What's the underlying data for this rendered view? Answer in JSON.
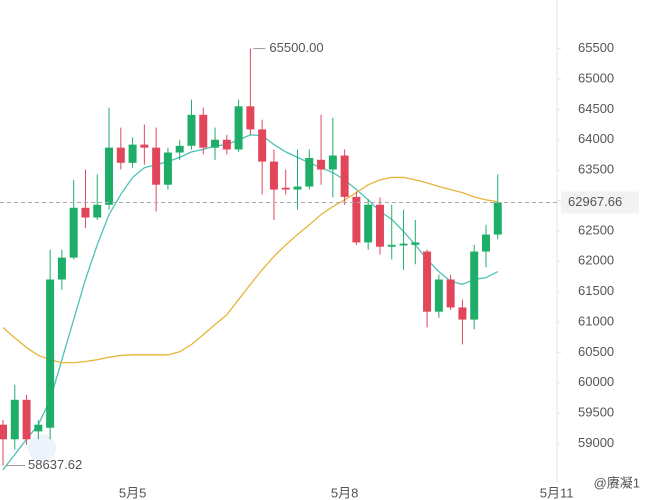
{
  "chart_data": {
    "type": "candlestick",
    "categories": [
      null,
      null,
      null,
      null,
      null,
      null,
      null,
      null,
      null,
      null,
      null,
      "5月5",
      null,
      null,
      null,
      null,
      null,
      null,
      null,
      null,
      null,
      null,
      null,
      null,
      null,
      null,
      null,
      null,
      null,
      "5月8",
      null,
      null,
      null,
      null,
      null,
      null,
      null,
      null,
      null,
      null,
      null,
      null,
      null,
      null,
      null,
      null,
      null,
      "5月11"
    ],
    "open": [
      59310,
      59070,
      59720,
      59200,
      59260,
      61700,
      62060,
      62880,
      62720,
      62930,
      63870,
      63620,
      63920,
      63870,
      63260,
      63790,
      63900,
      64410,
      63870,
      64000,
      63840,
      64550,
      64170,
      63640,
      63210,
      63180,
      63230,
      63670,
      63510,
      63740,
      63060,
      62310,
      62930,
      62240,
      62260,
      62270,
      62160,
      61170,
      61700,
      61240,
      61040,
      62160,
      62440,
      null,
      null,
      null,
      null,
      null
    ],
    "high": [
      59390,
      59970,
      59800,
      59390,
      62190,
      62190,
      63340,
      63510,
      63430,
      64530,
      64200,
      64040,
      64250,
      64200,
      63870,
      64000,
      64660,
      64530,
      64200,
      64080,
      64660,
      65500,
      64330,
      63840,
      63510,
      63840,
      63840,
      64410,
      64360,
      63840,
      63150,
      63020,
      63050,
      62930,
      62850,
      62680,
      62190,
      61780,
      61780,
      61370,
      62270,
      62600,
      63430,
      null,
      null,
      null,
      null,
      null
    ],
    "low": [
      58637.62,
      58900,
      58980,
      59070,
      59070,
      61530,
      62030,
      62550,
      62680,
      62850,
      63510,
      63540,
      63590,
      62820,
      63180,
      63670,
      63840,
      63760,
      63670,
      63760,
      63800,
      64080,
      63100,
      62680,
      63100,
      62850,
      63180,
      63260,
      63050,
      62930,
      62270,
      62190,
      62110,
      62030,
      61860,
      61950,
      60910,
      61070,
      61200,
      60630,
      60880,
      61900,
      62360,
      null,
      null,
      null,
      null,
      null
    ],
    "close": [
      59070,
      59720,
      59070,
      59310,
      61700,
      62060,
      62880,
      62720,
      62930,
      63870,
      63620,
      63920,
      63870,
      63260,
      63790,
      63900,
      64410,
      63870,
      64000,
      63840,
      64550,
      64170,
      63640,
      63180,
      63180,
      63230,
      63700,
      63510,
      63740,
      63060,
      62310,
      62930,
      62240,
      62270,
      62290,
      62310,
      61170,
      61700,
      61240,
      61040,
      62160,
      62440,
      62967.66,
      null,
      null,
      null,
      null,
      null
    ],
    "up_color": "#1fae6a",
    "down_color": "#e2465a",
    "series": [
      {
        "color": "#4cc3b4",
        "values": [
          58570,
          58820,
          59070,
          59310,
          59720,
          60380,
          61040,
          61700,
          62270,
          62770,
          63100,
          63380,
          63540,
          63590,
          63640,
          63710,
          63800,
          63840,
          63900,
          63920,
          64000,
          64080,
          64070,
          63920,
          63800,
          63710,
          63620,
          63540,
          63460,
          63340,
          63180,
          63010,
          62820,
          62690,
          62490,
          62270,
          62030,
          61830,
          61670,
          61620,
          61700,
          61730,
          61830,
          null,
          null,
          null,
          null,
          null
        ]
      },
      {
        "color": "#e6b53a",
        "values": [
          60910,
          60740,
          60580,
          60450,
          60380,
          60330,
          60330,
          60350,
          60380,
          60420,
          60450,
          60460,
          60460,
          60460,
          60460,
          60510,
          60630,
          60790,
          60960,
          61120,
          61370,
          61620,
          61860,
          62080,
          62270,
          62440,
          62600,
          62770,
          62900,
          63010,
          63130,
          63260,
          63340,
          63380,
          63380,
          63340,
          63290,
          63230,
          63180,
          63130,
          63060,
          63010,
          62980,
          null,
          null,
          null,
          null,
          null
        ]
      }
    ],
    "ylim": [
      58400,
      66300
    ],
    "yticks": [
      59000,
      59500,
      60000,
      60500,
      61000,
      61500,
      62000,
      62500,
      63000,
      63500,
      64000,
      64500,
      65000,
      65500
    ],
    "last_price": 62967.66,
    "high_annotation": {
      "value": 65500,
      "label": "65500.00"
    },
    "low_annotation": 58637.62,
    "watermark": "@赓凝1"
  }
}
